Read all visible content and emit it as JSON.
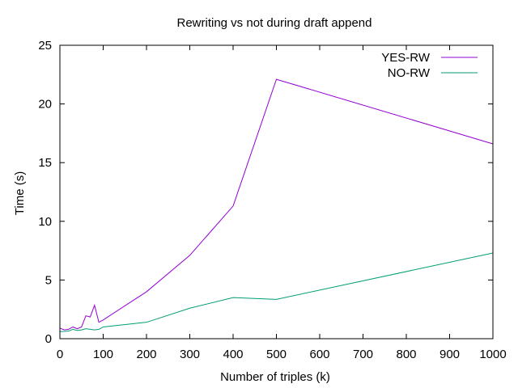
{
  "chart_data": {
    "type": "line",
    "title": "Rewriting vs not during draft append",
    "xlabel": "Number of triples (k)",
    "ylabel": "Time (s)",
    "xlim": [
      0,
      1000
    ],
    "ylim": [
      0,
      25
    ],
    "x_ticks": [
      0,
      100,
      200,
      300,
      400,
      500,
      600,
      700,
      800,
      900,
      1000
    ],
    "y_ticks": [
      0,
      5,
      10,
      15,
      20,
      25
    ],
    "grid": false,
    "legend_position": "top-right",
    "series": [
      {
        "name": "YES-RW",
        "color": "#9400d3",
        "points": [
          [
            0,
            0.9
          ],
          [
            10,
            0.75
          ],
          [
            20,
            0.8
          ],
          [
            30,
            1.0
          ],
          [
            40,
            0.85
          ],
          [
            50,
            1.0
          ],
          [
            60,
            1.95
          ],
          [
            70,
            1.85
          ],
          [
            80,
            2.85
          ],
          [
            90,
            1.4
          ],
          [
            100,
            1.6
          ],
          [
            200,
            4.0
          ],
          [
            300,
            7.1
          ],
          [
            400,
            11.3
          ],
          [
            500,
            22.1
          ],
          [
            1000,
            16.6
          ]
        ]
      },
      {
        "name": "NO-RW",
        "color": "#009e73",
        "points": [
          [
            0,
            0.6
          ],
          [
            10,
            0.62
          ],
          [
            20,
            0.65
          ],
          [
            30,
            0.8
          ],
          [
            40,
            0.7
          ],
          [
            50,
            0.75
          ],
          [
            60,
            0.85
          ],
          [
            70,
            0.8
          ],
          [
            80,
            0.75
          ],
          [
            90,
            0.8
          ],
          [
            100,
            1.0
          ],
          [
            200,
            1.4
          ],
          [
            300,
            2.6
          ],
          [
            400,
            3.5
          ],
          [
            500,
            3.35
          ],
          [
            1000,
            7.3
          ]
        ]
      }
    ]
  }
}
